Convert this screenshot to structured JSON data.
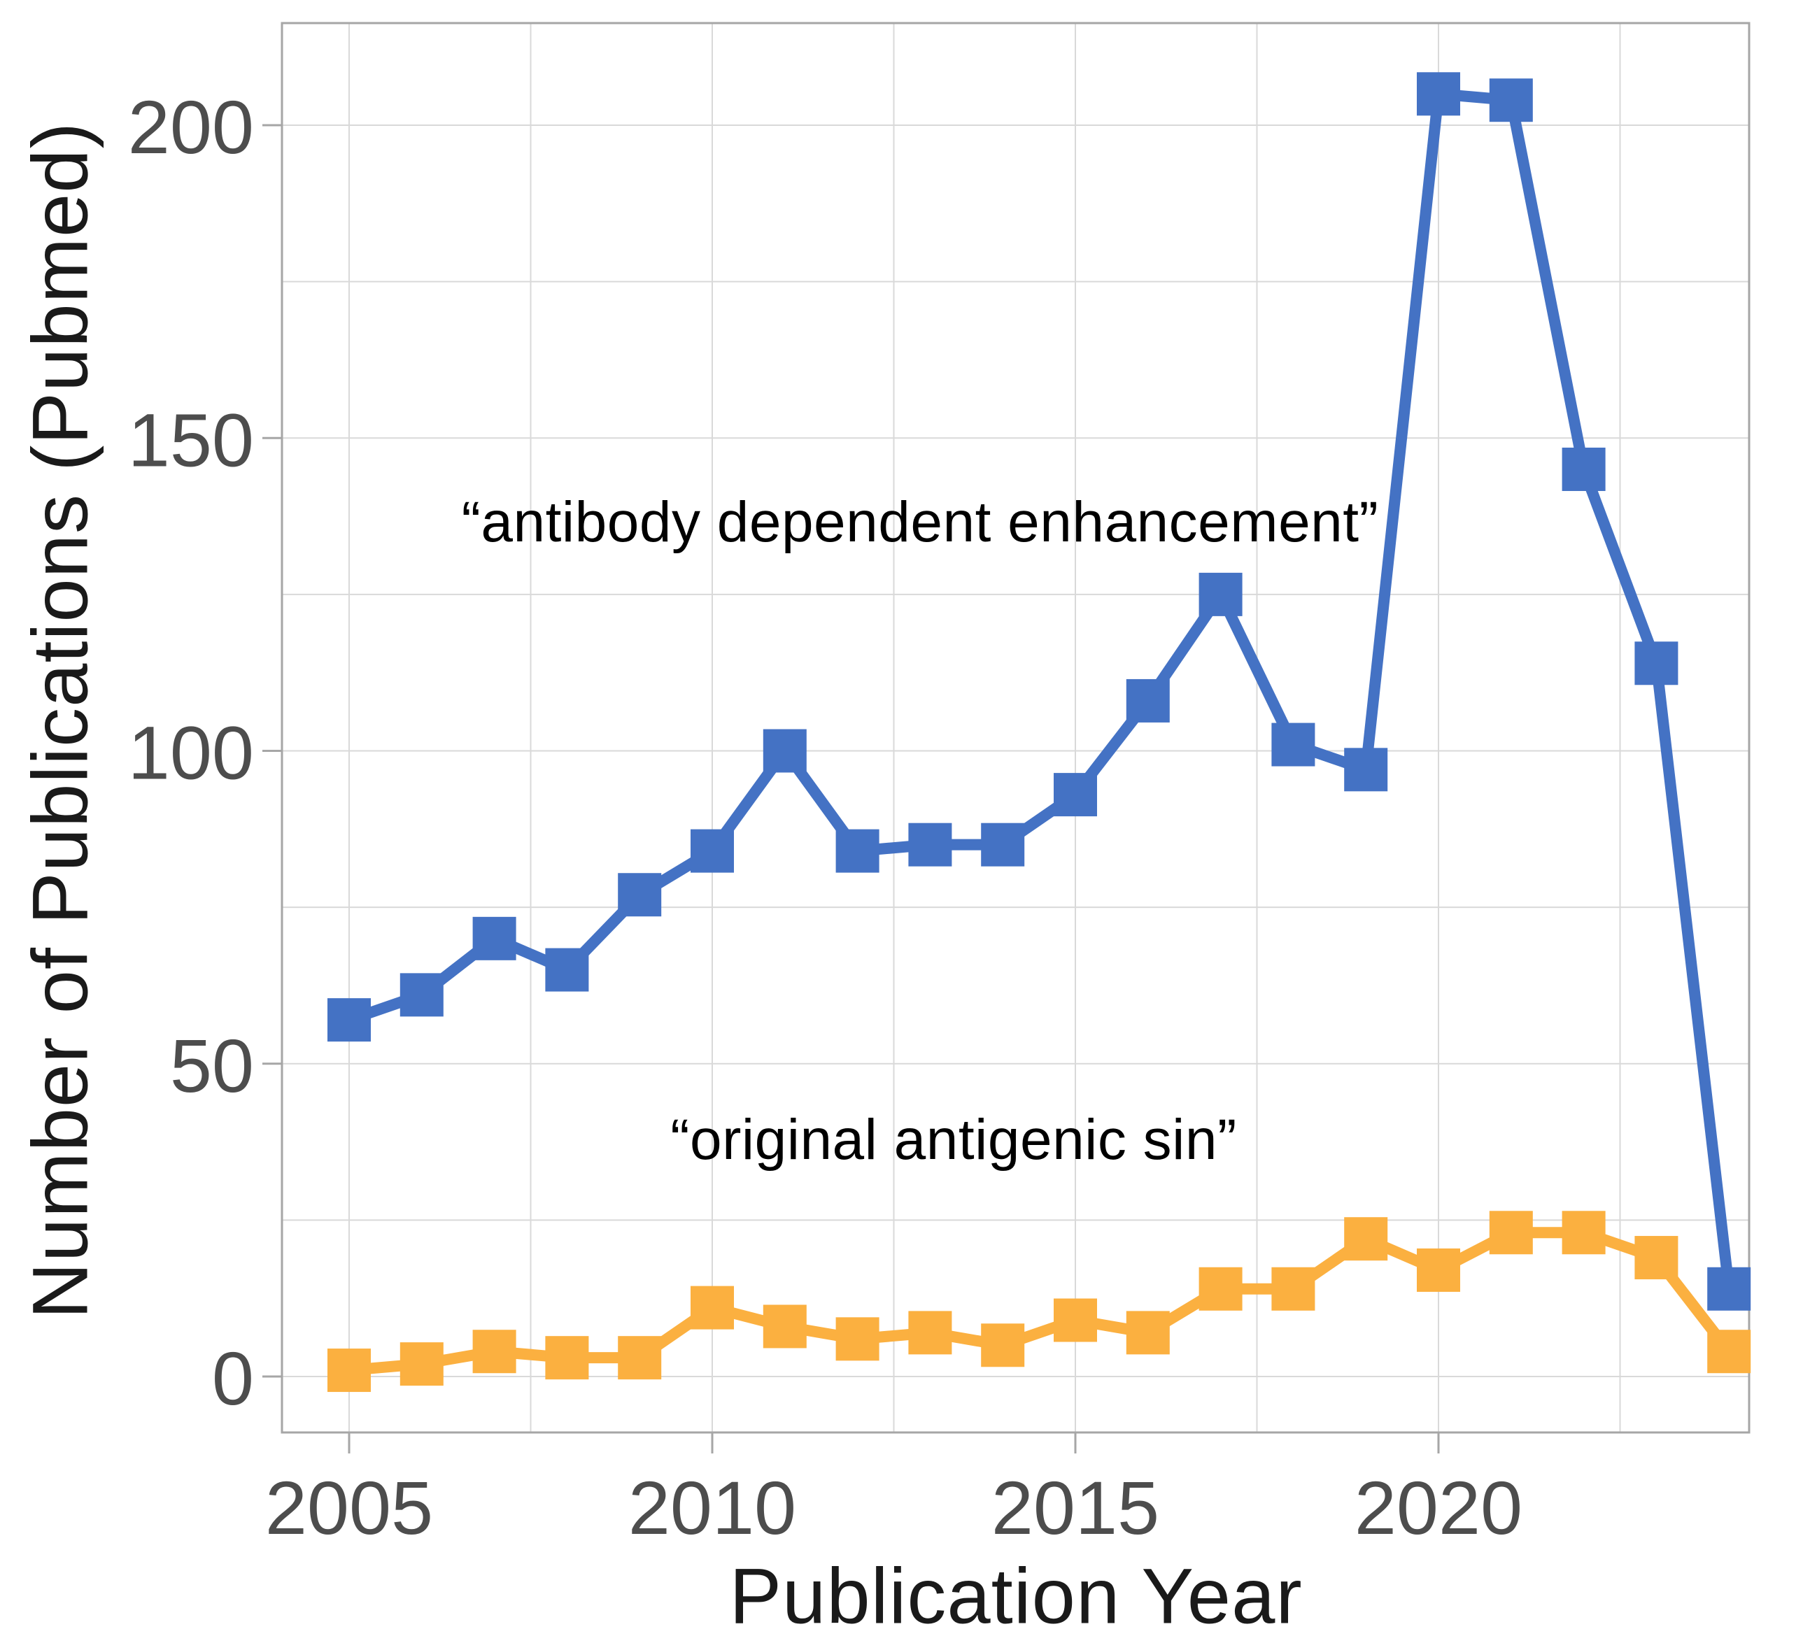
{
  "chart_data": {
    "type": "line",
    "title": "",
    "xlabel": "Publication Year",
    "ylabel": "Number of Publications (Pubmed)",
    "x": [
      2005,
      2006,
      2007,
      2008,
      2009,
      2010,
      2011,
      2012,
      2013,
      2014,
      2015,
      2016,
      2017,
      2018,
      2019,
      2020,
      2021,
      2022,
      2023,
      2024
    ],
    "x_ticks": [
      2005,
      2010,
      2015,
      2020
    ],
    "x_minor_step": 2.5,
    "y_ticks": [
      0,
      50,
      100,
      150,
      200
    ],
    "y_minor_step": 25,
    "ylim": [
      -9,
      216
    ],
    "grid": true,
    "legend_position": "none - series labeled by in-plot text annotations",
    "series": [
      {
        "name": "antibody dependent enhancement",
        "color": "#4472C4",
        "marker": "square",
        "values": [
          57,
          61,
          70,
          65,
          77,
          84,
          100,
          84,
          85,
          85,
          93,
          108,
          125,
          101,
          97,
          205,
          204,
          145,
          114,
          14
        ]
      },
      {
        "name": "original antigenic sin",
        "color": "#FBB040",
        "marker": "square",
        "values": [
          1,
          2,
          4,
          3,
          3,
          11,
          8,
          6,
          7,
          5,
          9,
          7,
          14,
          14,
          22,
          17,
          23,
          23,
          19,
          4
        ]
      }
    ],
    "annotations": [
      {
        "text": "“antibody dependent enhancement”",
        "series": "antibody dependent enhancement",
        "color": "#000000"
      },
      {
        "text": "“original antigenic sin”",
        "series": "original antigenic sin",
        "color": "#000000"
      }
    ],
    "axis_color": "#a6a6a6",
    "gridline_color": "#d9d9d9",
    "tick_label_color": "#4d4d4d"
  }
}
